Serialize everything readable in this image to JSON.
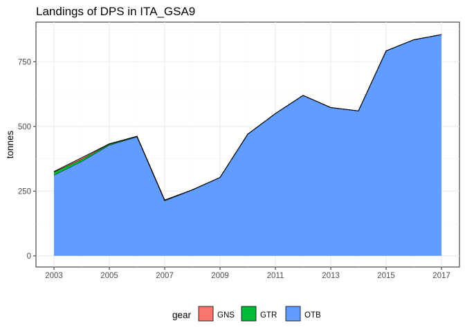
{
  "chart_data": {
    "type": "area",
    "stacked": true,
    "title": "Landings of DPS in ITA_GSA9",
    "xlabel": "",
    "ylabel": "tonnes",
    "x": [
      2003,
      2004,
      2005,
      2006,
      2007,
      2008,
      2009,
      2010,
      2011,
      2012,
      2013,
      2014,
      2015,
      2016,
      2017
    ],
    "x_ticks": [
      2003,
      2005,
      2007,
      2009,
      2011,
      2013,
      2015,
      2017
    ],
    "y_ticks": [
      0,
      250,
      500,
      750
    ],
    "xlim": [
      2002.35,
      2017.65
    ],
    "ylim": [
      -43,
      903
    ],
    "grid": true,
    "legend_position": "bottom",
    "legend_title": "gear",
    "series": [
      {
        "name": "OTB",
        "color": "#619CFF",
        "values": [
          312,
          365,
          428,
          460,
          213,
          255,
          303,
          470,
          550,
          620,
          573,
          560,
          792,
          835,
          855
        ]
      },
      {
        "name": "GTR",
        "color": "#00BA38",
        "values": [
          12,
          8,
          4,
          2,
          2,
          0,
          0,
          0,
          0,
          0,
          0,
          0,
          0,
          0,
          0
        ]
      },
      {
        "name": "GNS",
        "color": "#F8766D",
        "values": [
          2,
          6,
          1,
          0,
          1,
          0,
          0,
          0,
          0,
          0,
          0,
          0,
          0,
          0,
          0
        ]
      }
    ],
    "legend_order": [
      "GNS",
      "GTR",
      "OTB"
    ]
  }
}
